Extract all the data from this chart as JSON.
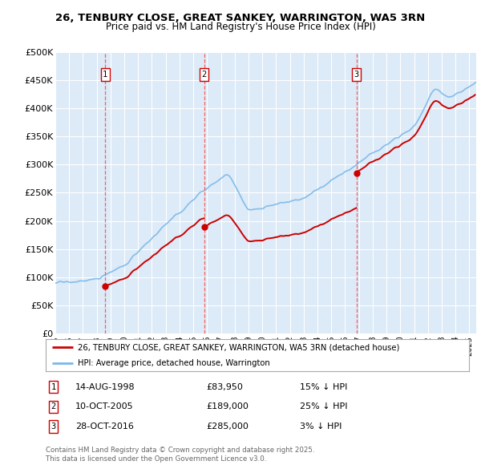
{
  "title1": "26, TENBURY CLOSE, GREAT SANKEY, WARRINGTON, WA5 3RN",
  "title2": "Price paid vs. HM Land Registry's House Price Index (HPI)",
  "legend_property": "26, TENBURY CLOSE, GREAT SANKEY, WARRINGTON, WA5 3RN (detached house)",
  "legend_hpi": "HPI: Average price, detached house, Warrington",
  "ylabel_ticks": [
    "£0",
    "£50K",
    "£100K",
    "£150K",
    "£200K",
    "£250K",
    "£300K",
    "£350K",
    "£400K",
    "£450K",
    "£500K"
  ],
  "ytick_values": [
    0,
    50000,
    100000,
    150000,
    200000,
    250000,
    300000,
    350000,
    400000,
    450000,
    500000
  ],
  "xmin": 1995.0,
  "xmax": 2025.5,
  "ymin": 0,
  "ymax": 500000,
  "background_color": "#ddeaf7",
  "grid_color": "#ffffff",
  "property_color": "#cc0000",
  "hpi_color": "#7ab8e8",
  "vline_color": "#ff4444",
  "annotation_box_color": "#cc0000",
  "sales": [
    {
      "num": 1,
      "date_str": "14-AUG-1998",
      "year": 1998.62,
      "price": 83950,
      "pct": "15%",
      "dir": "↓"
    },
    {
      "num": 2,
      "date_str": "10-OCT-2005",
      "year": 2005.78,
      "price": 189000,
      "pct": "25%",
      "dir": "↓"
    },
    {
      "num": 3,
      "date_str": "28-OCT-2016",
      "year": 2016.82,
      "price": 285000,
      "pct": "3%",
      "dir": "↓"
    }
  ],
  "footer1": "Contains HM Land Registry data © Crown copyright and database right 2025.",
  "footer2": "This data is licensed under the Open Government Licence v3.0."
}
